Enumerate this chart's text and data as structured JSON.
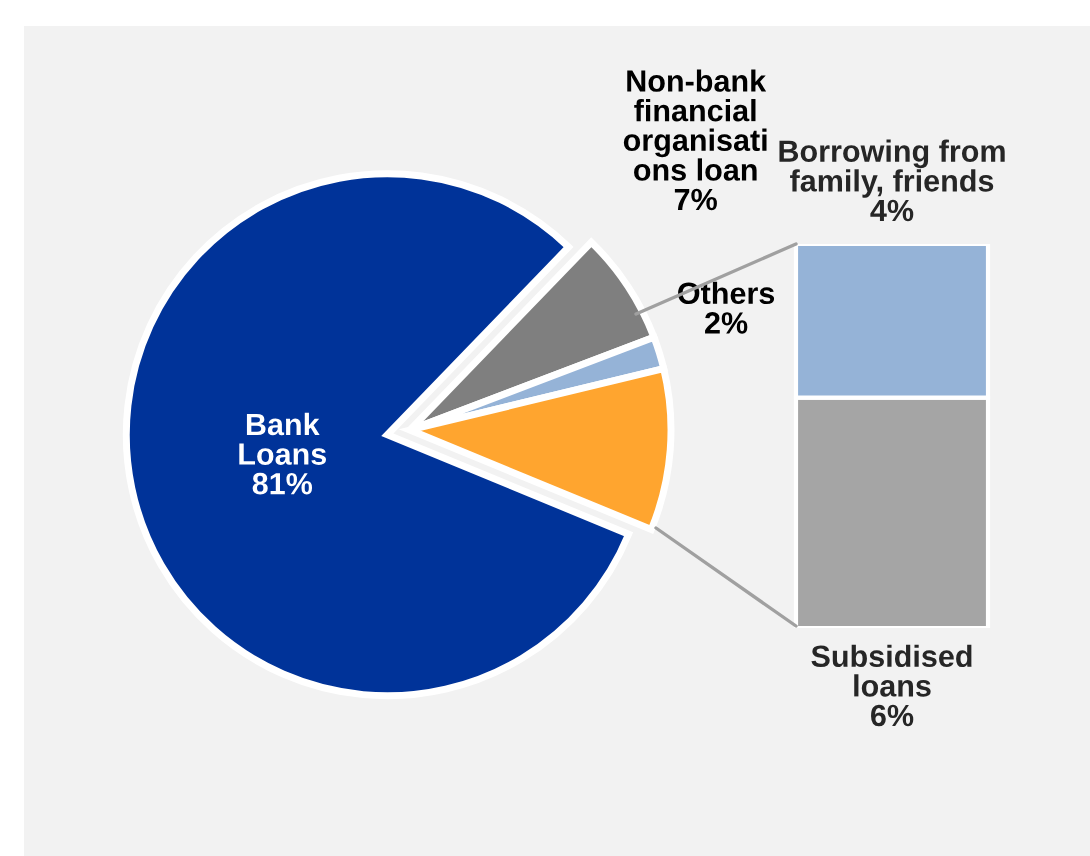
{
  "chart_data": [
    {
      "type": "pie",
      "categories": [
        "Non-bank\nfinancial\norganisati\nons loan",
        "Others",
        null,
        "Bank\nLoans"
      ],
      "values": [
        7,
        2,
        10,
        81
      ],
      "colors": [
        "#7f7f7f",
        "#95b3d7",
        "#ffa52f",
        "#003399"
      ],
      "value_labels": [
        "7%",
        "2%",
        null,
        "81%"
      ]
    },
    {
      "type": "bar",
      "stacked": true,
      "categories": [
        null
      ],
      "series": [
        {
          "name": "Subsidised\nloans",
          "color": "#a5a5a5",
          "values": [
            6
          ],
          "value_labels": [
            "6%"
          ]
        },
        {
          "name": "Borrowing from\nfamily, friends",
          "color": "#95b3d7",
          "values": [
            4
          ],
          "value_labels": [
            "4%"
          ]
        }
      ]
    }
  ]
}
